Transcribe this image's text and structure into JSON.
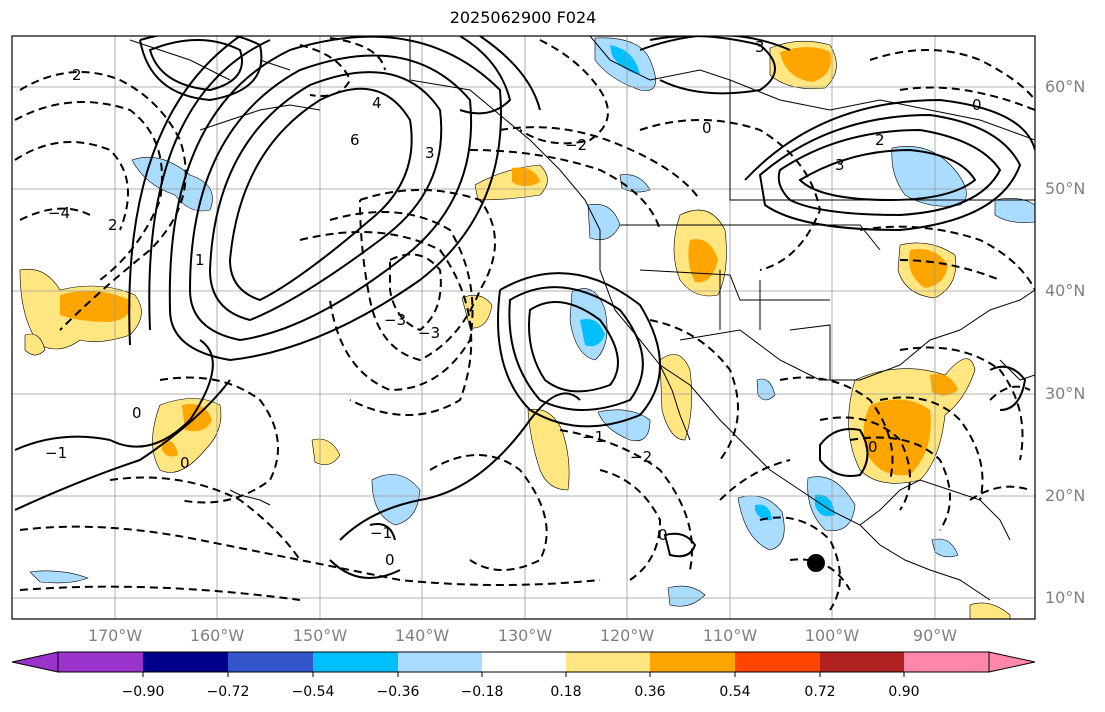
{
  "title": "2025062900 F024",
  "lat_labels": [
    "60°N",
    "50°N",
    "40°N",
    "30°N",
    "20°N",
    "10°N"
  ],
  "lon_labels": [
    "170°W",
    "160°W",
    "150°W",
    "140°W",
    "130°W",
    "120°W",
    "110°W",
    "100°W",
    "90°W"
  ],
  "colorbar": {
    "ticks": [
      "−0.90",
      "−0.72",
      "−0.54",
      "−0.36",
      "−0.18",
      "0.18",
      "0.36",
      "0.54",
      "0.72",
      "0.90"
    ],
    "colors": [
      "#9933cc",
      "#00008b",
      "#3355cc",
      "#00bfff",
      "#aadcff",
      "#ffffff",
      "#ffe680",
      "#ffa500",
      "#ff4500",
      "#b22222",
      "#ff88aa"
    ]
  },
  "contour_labels": [
    "2",
    "0",
    "−1",
    "4",
    "6",
    "3",
    "0",
    "−2",
    "−3",
    "2",
    "−4",
    "−3",
    "−2",
    "3",
    "0",
    "−1",
    "0",
    "−1",
    "0",
    "3",
    "2",
    "0",
    "1",
    "0"
  ],
  "marker": "storm-center"
}
